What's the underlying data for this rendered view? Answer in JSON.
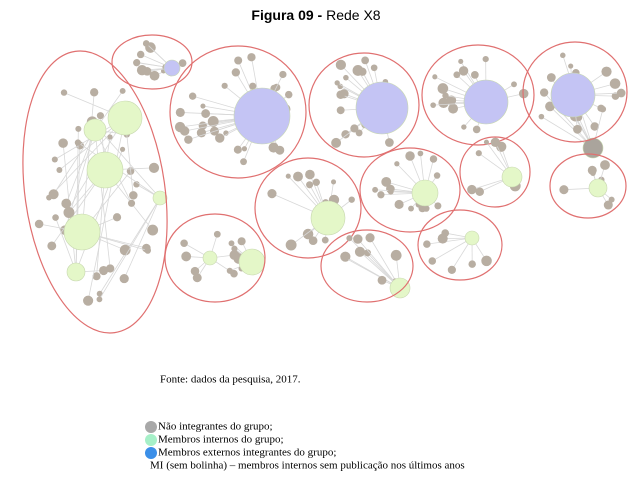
{
  "figure": {
    "title_label": "Figura 09 -",
    "title": "Rede X8"
  },
  "source": "Fonte: dados da pesquisa, 2017.",
  "legend": [
    "Não integrantes do grupo;",
    "Membros internos do grupo;",
    "Membros externos integrantes do grupo;",
    "MI (sem bolinha) – membros internos sem publicação nos últimos anos"
  ]
}
